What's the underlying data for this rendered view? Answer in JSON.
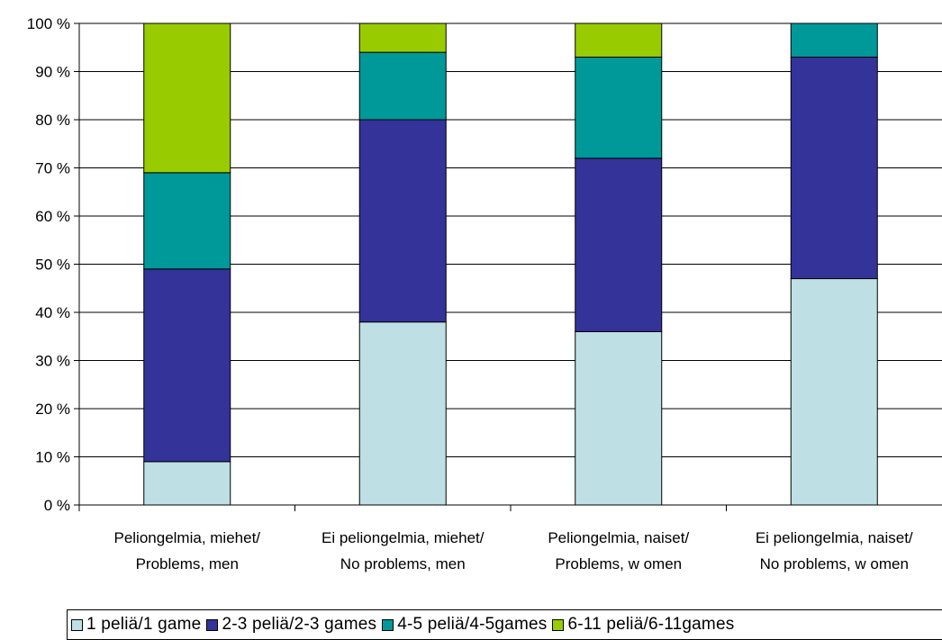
{
  "chart_data": {
    "type": "bar",
    "stacked": true,
    "percent_stacked": true,
    "categories": [
      [
        "Peliongelmia, miehet/",
        "Problems, men"
      ],
      [
        "Ei peliongelmia, miehet/",
        "No problems, men"
      ],
      [
        "Peliongelmia, naiset/",
        "Problems, w omen"
      ],
      [
        "Ei peliongelmia, naiset/",
        "No problems, w omen"
      ]
    ],
    "series": [
      {
        "name": "1 peliä/1 game",
        "color": "#BEE0E4",
        "values": [
          9,
          38,
          36,
          47
        ]
      },
      {
        "name": "2-3 peliä/2-3 games",
        "color": "#333399",
        "values": [
          40,
          42,
          36,
          46
        ]
      },
      {
        "name": "4-5 peliä/4-5games",
        "color": "#009999",
        "values": [
          20,
          14,
          21,
          7
        ]
      },
      {
        "name": "6-11 peliä/6-11games",
        "color": "#99CC00",
        "values": [
          31,
          6,
          7,
          0
        ]
      }
    ],
    "ylim": [
      0,
      100
    ],
    "yticks": [
      "0 %",
      "10 %",
      "20 %",
      "30 %",
      "40 %",
      "50 %",
      "60 %",
      "70 %",
      "80 %",
      "90 %",
      "100 %"
    ],
    "grid": true,
    "legend_position": "bottom"
  }
}
